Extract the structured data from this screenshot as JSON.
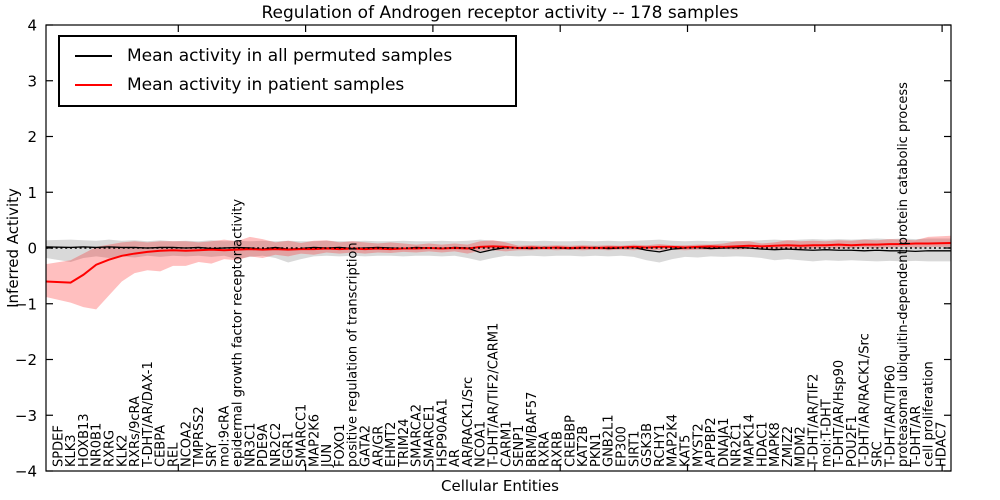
{
  "title": "Regulation of Androgen receptor activity -- 178 samples",
  "legend": {
    "entries": [
      {
        "label": "Mean activity in all permuted samples",
        "color": "#000000"
      },
      {
        "label": "Mean activity in patient samples",
        "color": "#ff0000"
      }
    ]
  },
  "chart_data": {
    "type": "line",
    "title": "Regulation of Androgen receptor activity -- 178 samples",
    "xlabel": "Cellular Entities",
    "ylabel": "Inferred Activity",
    "ylim": [
      -4,
      4
    ],
    "yticks": [
      -4,
      -3,
      -2,
      -1,
      0,
      1,
      2,
      3,
      4
    ],
    "grid": false,
    "zero_line": true,
    "legend_position": "upper left",
    "categories": [
      "SPDEF",
      "KLK3",
      "HOXB13",
      "NR0B1",
      "RXRG",
      "KLK2",
      "RXRs/9cRA",
      "T-DHT/AR/DAX-1",
      "CEBPA",
      "REL",
      "NCOA2",
      "TMPRSS2",
      "SRY",
      "mol:9cRA",
      "epidermal growth factor receptor activity",
      "NR3C1",
      "PDE9A",
      "NR2C2",
      "EGR1",
      "SMARCC1",
      "MAP2K6",
      "JUN",
      "FOXO1",
      "positive regulation of transcription",
      "GATA2",
      "AR/GR",
      "EHMT2",
      "TRIM24",
      "SMARCA2",
      "SMARCE1",
      "HSP90AA1",
      "AR",
      "AR/RACK1/Src",
      "NCOA1",
      "T-DHT/AR/TIF2/CARM1",
      "CARM1",
      "SENP1",
      "BRM/BAF57",
      "RXRA",
      "RXRB",
      "CREBBP",
      "KAT2B",
      "PKN1",
      "GNB2L1",
      "EP300",
      "SIRT1",
      "GSK3B",
      "RCHY1",
      "MAP2K4",
      "KAT5",
      "MYST2",
      "APPBP2",
      "DNAJA1",
      "NR2C1",
      "MAPK14",
      "HDAC1",
      "MAPK8",
      "ZMIZ2",
      "MDM2",
      "T-DHT/AR/TIF2",
      "mol:T-DHT",
      "T-DHT/AR/Hsp90",
      "POU2F1",
      "T-DHT/AR/RACK1/Src",
      "SRC",
      "T-DHT/AR/TIP60",
      "proteasomal ubiquitin-dependent protein catabolic process",
      "T-DHT/AR",
      "cell proliferation",
      "HDAC7"
    ],
    "series": [
      {
        "name": "Mean activity in all permuted samples",
        "color": "#000000",
        "band_color": "rgba(0,0,0,0.15)",
        "values": [
          0.02,
          0.01,
          0.02,
          0.01,
          0.02,
          0.01,
          0.01,
          0.0,
          0.01,
          0.01,
          0.0,
          0.01,
          -0.01,
          0.0,
          0.01,
          0.0,
          -0.02,
          0.01,
          -0.02,
          -0.01,
          0.01,
          0.0,
          0.01,
          -0.01,
          0.0,
          0.01,
          0.0,
          -0.01,
          0.01,
          0.0,
          -0.01,
          0.01,
          0.0,
          -0.08,
          -0.03,
          0.01,
          0.0,
          -0.01,
          0.01,
          0.0,
          -0.01,
          0.0,
          0.01,
          -0.01,
          0.0,
          0.01,
          -0.04,
          -0.07,
          -0.02,
          0.0,
          0.01,
          -0.01,
          0.0,
          0.01,
          0.0,
          -0.02,
          -0.03,
          -0.02,
          -0.03,
          -0.04,
          -0.03,
          -0.04,
          -0.04,
          -0.05,
          -0.04,
          -0.05,
          -0.05,
          -0.06,
          -0.05,
          -0.05
        ],
        "band_hi": [
          0.14,
          0.15,
          0.14,
          0.13,
          0.15,
          0.13,
          0.14,
          0.12,
          0.14,
          0.12,
          0.13,
          0.12,
          0.14,
          0.12,
          0.13,
          0.12,
          0.13,
          0.12,
          0.13,
          0.12,
          0.12,
          0.13,
          0.12,
          0.12,
          0.13,
          0.12,
          0.12,
          0.13,
          0.12,
          0.12,
          0.13,
          0.12,
          0.13,
          0.15,
          0.13,
          0.12,
          0.13,
          0.12,
          0.13,
          0.12,
          0.12,
          0.13,
          0.12,
          0.13,
          0.12,
          0.13,
          0.14,
          0.15,
          0.13,
          0.12,
          0.13,
          0.12,
          0.13,
          0.12,
          0.13,
          0.14,
          0.15,
          0.14,
          0.15,
          0.16,
          0.15,
          0.16,
          0.15,
          0.16,
          0.17,
          0.16,
          0.17,
          0.16,
          0.17,
          0.17
        ],
        "band_lo": [
          -0.18,
          -0.25,
          -0.18,
          -0.15,
          -0.18,
          -0.15,
          -0.17,
          -0.14,
          -0.16,
          -0.14,
          -0.15,
          -0.14,
          -0.16,
          -0.14,
          -0.2,
          -0.16,
          -0.14,
          -0.18,
          -0.26,
          -0.2,
          -0.15,
          -0.14,
          -0.15,
          -0.14,
          -0.15,
          -0.14,
          -0.14,
          -0.15,
          -0.14,
          -0.14,
          -0.15,
          -0.14,
          -0.18,
          -0.23,
          -0.18,
          -0.14,
          -0.15,
          -0.14,
          -0.15,
          -0.14,
          -0.14,
          -0.15,
          -0.14,
          -0.15,
          -0.14,
          -0.16,
          -0.22,
          -0.26,
          -0.2,
          -0.16,
          -0.17,
          -0.15,
          -0.16,
          -0.15,
          -0.16,
          -0.18,
          -0.22,
          -0.2,
          -0.22,
          -0.24,
          -0.22,
          -0.23,
          -0.22,
          -0.23,
          -0.24,
          -0.23,
          -0.24,
          -0.23,
          -0.24,
          -0.24
        ]
      },
      {
        "name": "Mean activity in patient samples",
        "color": "#ff0000",
        "band_color": "rgba(255,0,0,0.25)",
        "values": [
          -0.6,
          -0.62,
          -0.48,
          -0.3,
          -0.21,
          -0.14,
          -0.1,
          -0.07,
          -0.05,
          -0.04,
          -0.05,
          -0.04,
          -0.03,
          -0.04,
          -0.03,
          -0.02,
          -0.03,
          -0.02,
          -0.03,
          -0.02,
          -0.02,
          -0.01,
          -0.02,
          -0.01,
          -0.02,
          -0.01,
          -0.02,
          -0.01,
          -0.01,
          0.0,
          -0.01,
          0.0,
          -0.01,
          0.02,
          0.03,
          0.02,
          0.0,
          0.01,
          0.0,
          0.01,
          0.0,
          0.01,
          0.0,
          0.01,
          0.01,
          0.02,
          0.01,
          0.02,
          0.02,
          0.01,
          0.02,
          0.03,
          0.02,
          0.03,
          0.04,
          0.03,
          0.04,
          0.05,
          0.04,
          0.05,
          0.05,
          0.06,
          0.05,
          0.06,
          0.06,
          0.07,
          0.07,
          0.08,
          0.08,
          0.09
        ],
        "band_hi": [
          -0.29,
          -0.22,
          -0.1,
          0.02,
          0.06,
          0.1,
          0.12,
          0.1,
          0.12,
          0.12,
          0.12,
          0.1,
          0.12,
          0.15,
          0.12,
          0.2,
          0.16,
          0.1,
          0.13,
          0.09,
          0.13,
          0.14,
          0.1,
          0.12,
          0.1,
          0.08,
          0.1,
          0.08,
          0.06,
          0.08,
          0.06,
          0.08,
          0.06,
          0.12,
          0.14,
          0.1,
          0.04,
          0.05,
          0.04,
          0.05,
          0.04,
          0.05,
          0.04,
          0.05,
          0.04,
          0.06,
          0.05,
          0.07,
          0.05,
          0.05,
          0.06,
          0.06,
          0.08,
          0.12,
          0.12,
          0.08,
          0.1,
          0.14,
          0.12,
          0.13,
          0.12,
          0.14,
          0.13,
          0.15,
          0.14,
          0.16,
          0.15,
          0.14,
          0.2,
          0.22
        ],
        "band_lo": [
          -0.88,
          -0.98,
          -1.06,
          -1.1,
          -0.85,
          -0.6,
          -0.45,
          -0.4,
          -0.42,
          -0.32,
          -0.32,
          -0.25,
          -0.28,
          -0.2,
          -0.22,
          -0.15,
          -0.18,
          -0.12,
          -0.15,
          -0.1,
          -0.12,
          -0.08,
          -0.1,
          -0.08,
          -0.1,
          -0.08,
          -0.09,
          -0.07,
          -0.08,
          -0.06,
          -0.08,
          -0.06,
          -0.1,
          -0.05,
          -0.04,
          -0.06,
          -0.04,
          -0.04,
          -0.03,
          -0.04,
          -0.03,
          -0.04,
          -0.03,
          -0.04,
          -0.03,
          -0.04,
          -0.03,
          -0.04,
          -0.03,
          -0.04,
          -0.03,
          -0.03,
          -0.02,
          -0.03,
          -0.02,
          -0.03,
          -0.02,
          -0.01,
          -0.02,
          -0.01,
          0.0,
          -0.01,
          0.0,
          0.01,
          0.0,
          0.01,
          0.02,
          0.01,
          0.02,
          0.02
        ]
      }
    ]
  }
}
